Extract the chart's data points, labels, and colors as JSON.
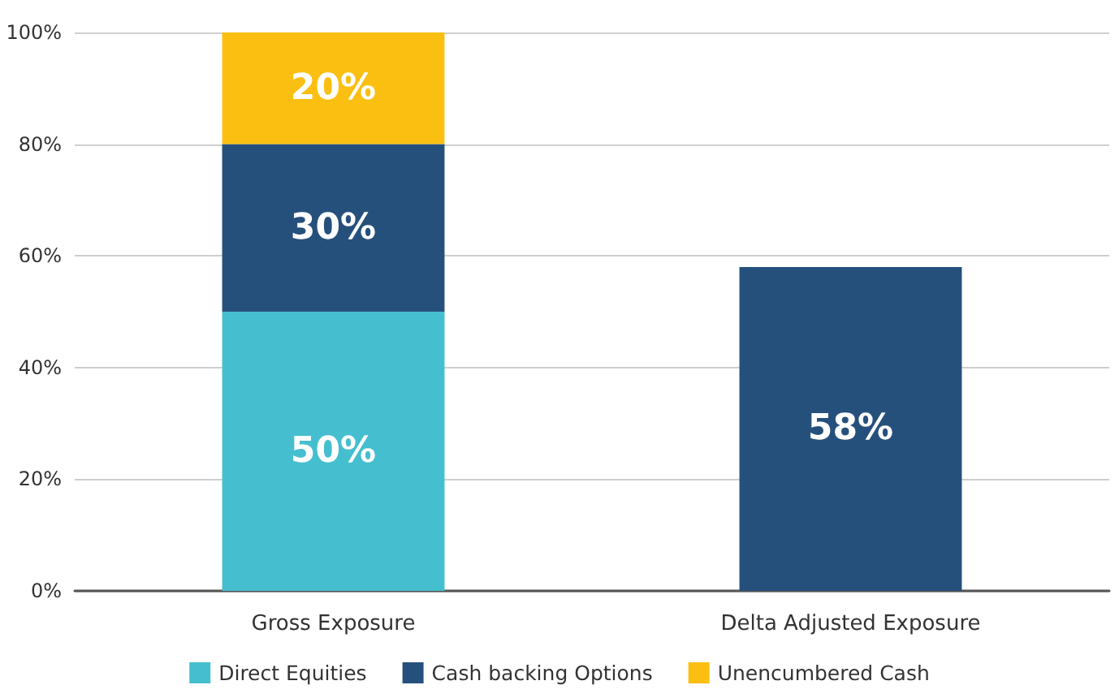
{
  "chart_data": {
    "type": "bar",
    "stacked": true,
    "categories": [
      "Gross Exposure",
      "Delta Adjusted Exposure"
    ],
    "series": [
      {
        "name": "Direct Equities",
        "color": "#45bfcf",
        "values": [
          50,
          null
        ],
        "value_labels": [
          "50%",
          null
        ]
      },
      {
        "name": "Cash backing Options",
        "color": "#26507c",
        "values": [
          30,
          58
        ],
        "value_labels": [
          "30%",
          "58%"
        ]
      },
      {
        "name": "Unencumbered Cash",
        "color": "#fbbf12",
        "values": [
          20,
          null
        ],
        "value_labels": [
          "20%",
          null
        ]
      }
    ],
    "ylim": [
      0,
      100
    ],
    "yticks": [
      {
        "value": 0,
        "label": "0%"
      },
      {
        "value": 20,
        "label": "20%"
      },
      {
        "value": 40,
        "label": "40%"
      },
      {
        "value": 60,
        "label": "60%"
      },
      {
        "value": 80,
        "label": "80%"
      },
      {
        "value": 100,
        "label": "100%"
      }
    ],
    "grid": "y",
    "legend": "bottom"
  }
}
